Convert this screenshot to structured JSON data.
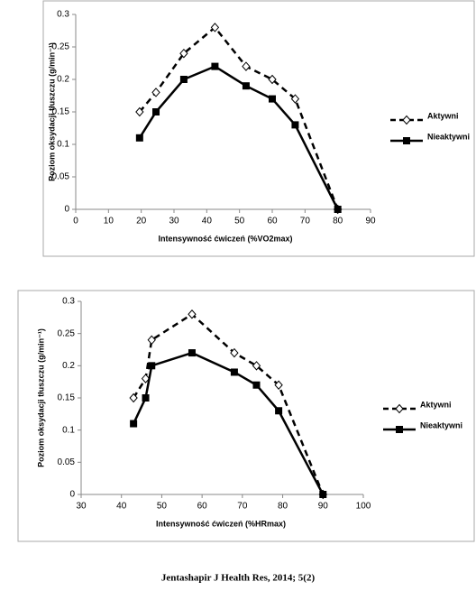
{
  "chart_data": [
    {
      "type": "line",
      "y_label": "Poziom oksydacji tłuszczu (g/min⁻¹)",
      "x_label": "Intensywność ćwiczeń (%VO2max)",
      "xlim": [
        0,
        90
      ],
      "xticks": [
        0,
        10,
        20,
        30,
        40,
        50,
        60,
        70,
        80,
        90
      ],
      "ylim": [
        0,
        0.3
      ],
      "yticks": [
        0,
        0.05,
        0.1,
        0.15,
        0.2,
        0.25,
        0.3
      ],
      "legend": "right",
      "series": [
        {
          "name": "Aktywni",
          "color": "#000000",
          "line_style": "dashed",
          "marker": "diamond-open",
          "x": [
            19.5,
            24.5,
            33,
            42.5,
            52,
            60,
            67,
            80
          ],
          "values": [
            0.15,
            0.18,
            0.24,
            0.28,
            0.22,
            0.2,
            0.17,
            0
          ]
        },
        {
          "name": "Nieaktywni",
          "color": "#000000",
          "line_style": "solid",
          "marker": "square",
          "x": [
            19.5,
            24.5,
            33,
            42.5,
            52,
            60,
            67,
            80
          ],
          "values": [
            0.11,
            0.15,
            0.2,
            0.22,
            0.19,
            0.17,
            0.13,
            0
          ]
        }
      ]
    },
    {
      "type": "line",
      "y_label": "Poziom oksydacji tłuszczu (g/min⁻¹)",
      "x_label": "Intensywność ćwiczeń (%HRmax)",
      "xlim": [
        30,
        100
      ],
      "xticks": [
        30,
        40,
        50,
        60,
        70,
        80,
        90,
        100
      ],
      "ylim": [
        0,
        0.3
      ],
      "yticks": [
        0,
        0.05,
        0.1,
        0.15,
        0.2,
        0.25,
        0.3
      ],
      "legend": "right",
      "series": [
        {
          "name": "Aktywni",
          "color": "#000000",
          "line_style": "dashed",
          "marker": "diamond-open",
          "x": [
            43,
            46,
            47.5,
            57.5,
            68,
            73.5,
            79,
            90
          ],
          "values": [
            0.15,
            0.18,
            0.24,
            0.28,
            0.22,
            0.2,
            0.17,
            0
          ]
        },
        {
          "name": "Nieaktywni",
          "color": "#000000",
          "line_style": "solid",
          "marker": "square",
          "x": [
            43,
            46,
            47.5,
            57.5,
            68,
            73.5,
            79,
            90
          ],
          "values": [
            0.11,
            0.15,
            0.2,
            0.22,
            0.19,
            0.17,
            0.13,
            0
          ]
        }
      ]
    }
  ],
  "footer": "Jentashapir J Health Res, 2014; 5(2)"
}
